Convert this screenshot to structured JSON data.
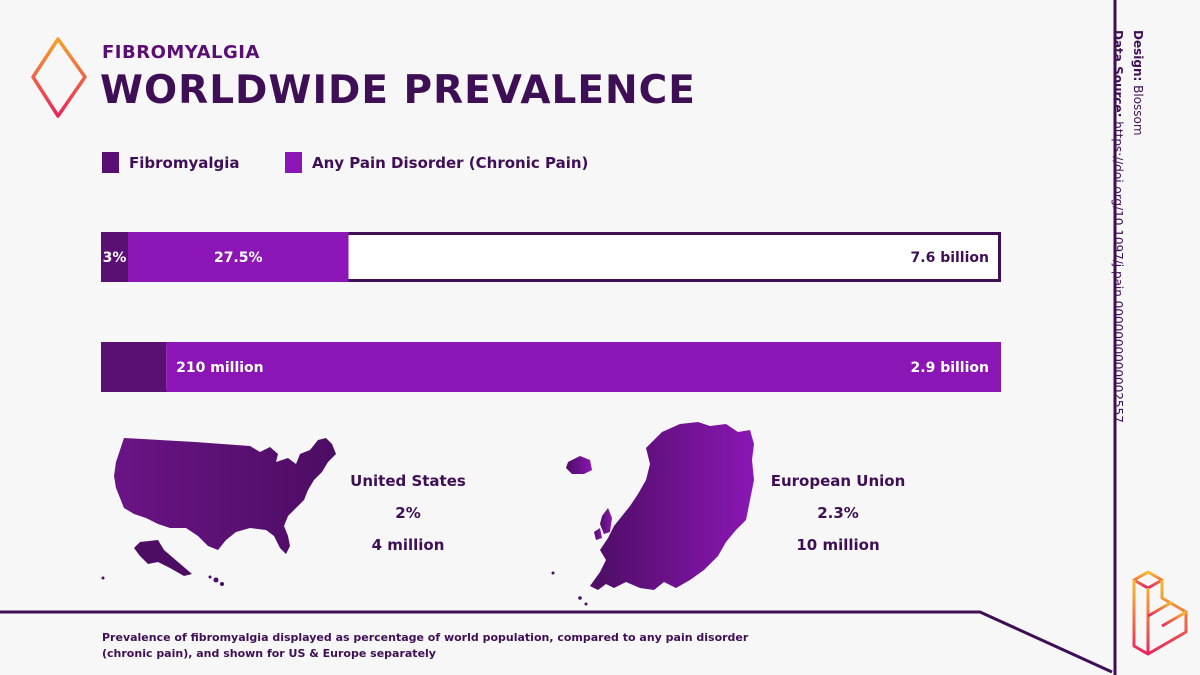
{
  "header": {
    "subtitle": "FIBROMYALGIA",
    "title": "WORLDWIDE PREVALENCE"
  },
  "legend": [
    {
      "label": "Fibromyalgia",
      "color": "#5a0f73"
    },
    {
      "label": "Any Pain Disorder (Chronic Pain)",
      "color": "#8b16b5"
    }
  ],
  "chart_data": {
    "type": "bar",
    "orientation": "horizontal",
    "stacked": true,
    "series": [
      {
        "name": "Fibromyalgia",
        "color": "#5a0f73"
      },
      {
        "name": "Any Pain Disorder (Chronic Pain)",
        "color": "#8b16b5"
      }
    ],
    "bars": [
      {
        "segments": [
          {
            "series": "Fibromyalgia",
            "value": 3,
            "label": "3%"
          },
          {
            "series": "Any Pain Disorder (Chronic Pain)",
            "value": 24.5,
            "label": "27.5%"
          }
        ],
        "total": 100,
        "total_label": "7.6 billion"
      },
      {
        "segments": [
          {
            "series": "Fibromyalgia",
            "value": 210,
            "label": "210 million"
          },
          {
            "series": "Any Pain Disorder (Chronic Pain)",
            "value": 2690,
            "label": "2.9 billion"
          }
        ],
        "total": 2900,
        "total_label": ""
      }
    ]
  },
  "regions": [
    {
      "name": "United States",
      "percent": "2%",
      "count": "4 million"
    },
    {
      "name": "European Union",
      "percent": "2.3%",
      "count": "10 million"
    }
  ],
  "credits": {
    "design_label": "Design:",
    "design_value": "Blossom",
    "source_label": "Data Source:",
    "source_value": "https://doi.org/10.1097/j.pain.0000000000002557"
  },
  "footer": {
    "note": "Prevalence of fibromyalgia displayed as percentage of world population, compared to any pain disorder (chronic pain), and shown for US & Europe separately"
  },
  "colors": {
    "dark_purple": "#3f0f56",
    "fibro": "#5a0f73",
    "pain": "#8b16b5",
    "orange": "#f7a02a",
    "pink": "#e8265e"
  }
}
